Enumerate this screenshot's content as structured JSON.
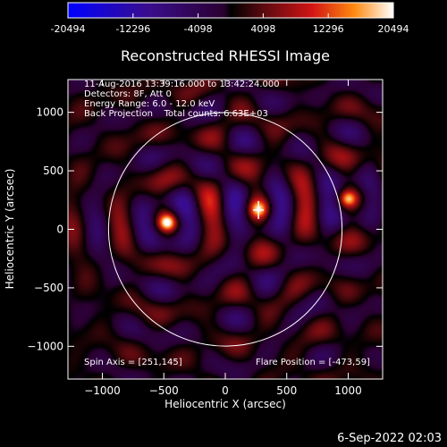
{
  "colorbar": {
    "ticks": [
      "-20494",
      "-12296",
      "-4098",
      "4098",
      "12296",
      "20494"
    ],
    "min": -20494,
    "max": 20494
  },
  "chart_data": {
    "type": "heatmap",
    "title": "Reconstructed RHESSI Image",
    "xlabel": "Heliocentric X (arcsec)",
    "ylabel": "Heliocentric Y (arcsec)",
    "xlim": [
      -1280,
      1280
    ],
    "ylim": [
      -1280,
      1280
    ],
    "xticks": [
      -1000,
      -500,
      0,
      500,
      1000
    ],
    "yticks": [
      -1000,
      -500,
      0,
      500,
      1000
    ],
    "limb_radius_arcsec": 950,
    "info_lines": [
      "11-Aug-2016 13:39:16.000 to 13:42:24.000",
      "Detectors: 8F, Att 0",
      "Energy Range: 6.0 - 12.0 keV",
      "Back Projection    Total counts: 6.63E+03"
    ],
    "spin_axis": "Spin Axis = [251,145]",
    "flare_position": "Flare Position = [-473,59]",
    "sources": [
      {
        "x": -473,
        "y": 59
      },
      {
        "x": 1000,
        "y": 260
      },
      {
        "x": 270,
        "y": 170
      }
    ],
    "flare_marker": {
      "x": 270,
      "y": 165
    }
  },
  "footer": {
    "date": "6-Sep-2022 02:03"
  }
}
